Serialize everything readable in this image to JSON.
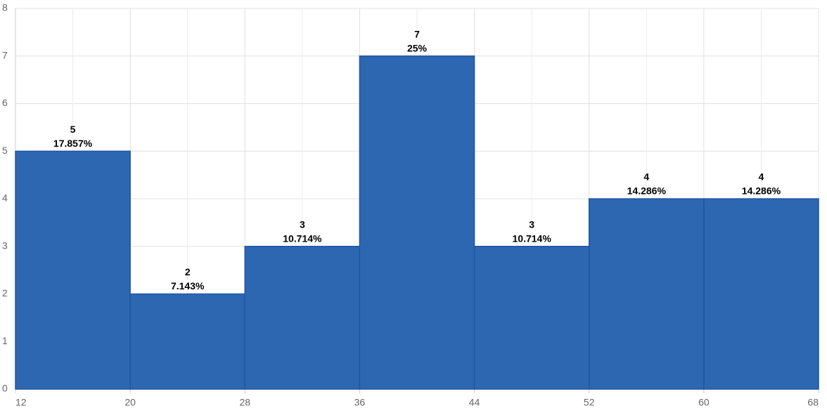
{
  "chart_data": {
    "type": "histogram",
    "bins": [
      12,
      20,
      28,
      36,
      44,
      52,
      60,
      68
    ],
    "values": [
      5,
      2,
      3,
      7,
      3,
      4,
      4
    ],
    "percent_labels": [
      "17.857%",
      "7.143%",
      "10.714%",
      "25%",
      "10.714%",
      "14.286%",
      "14.286%"
    ],
    "color": "#2d67b2",
    "xlim": [
      12,
      68
    ],
    "xticks": [
      12,
      20,
      28,
      36,
      44,
      52,
      60,
      68
    ],
    "xminorticks": [
      16,
      24,
      32,
      40,
      48,
      56,
      64
    ],
    "ylim": [
      0,
      8
    ],
    "yticks": [
      0,
      1,
      2,
      3,
      4,
      5,
      6,
      7,
      8
    ],
    "grid": true
  }
}
